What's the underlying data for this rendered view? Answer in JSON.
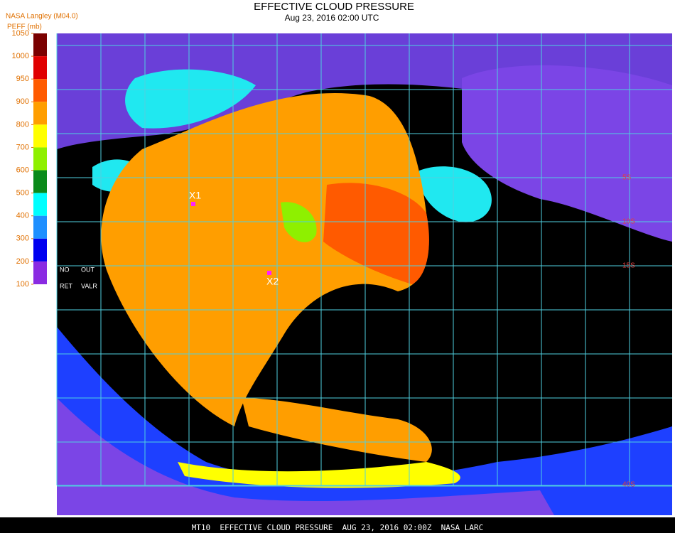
{
  "header": {
    "title": "EFFECTIVE CLOUD PRESSURE",
    "subtitle": "Aug 23, 2016 02:00 UTC"
  },
  "legend": {
    "source": "NASA Langley (M04.0)",
    "unit": "PEFF (mb)",
    "levels": [
      1050,
      1000,
      950,
      900,
      800,
      700,
      600,
      500,
      400,
      300,
      200,
      100
    ],
    "colors": [
      "#7a0000",
      "#e00000",
      "#ff5a00",
      "#ff9e00",
      "#ffff00",
      "#8ef000",
      "#0a8a1a",
      "#00ffff",
      "#1e8fff",
      "#0000f0",
      "#8a2be2"
    ]
  },
  "notes": [
    "NO",
    "OUT",
    "RET",
    "VALR"
  ],
  "markers": [
    {
      "label": "X1"
    },
    {
      "label": "X2"
    }
  ],
  "grid_labels": [
    "5S",
    "10S",
    "15S",
    "40S"
  ],
  "footer": "MT10  EFFECTIVE CLOUD PRESSURE  AUG 23, 2016 02:00Z  NASA LARC"
}
